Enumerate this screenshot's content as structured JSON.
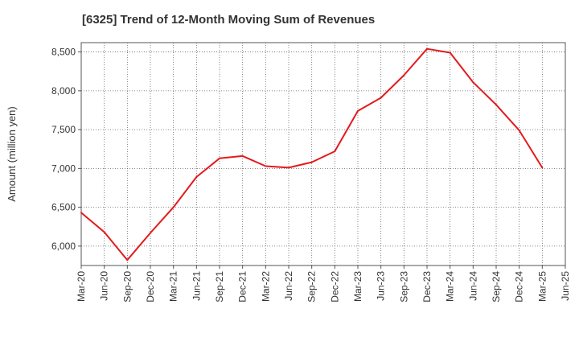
{
  "chart_data": {
    "type": "line",
    "title": "[6325]  Trend of 12-Month Moving Sum of Revenues",
    "xlabel": "",
    "ylabel": "Amount (million yen)",
    "ylim": [
      5750,
      8620
    ],
    "yticks": [
      6000,
      6500,
      7000,
      7500,
      8000,
      8500
    ],
    "ytick_labels": [
      "6,000",
      "6,500",
      "7,000",
      "7,500",
      "8,000",
      "8,500"
    ],
    "categories": [
      "Mar-20",
      "Jun-20",
      "Sep-20",
      "Dec-20",
      "Mar-21",
      "Jun-21",
      "Sep-21",
      "Dec-21",
      "Mar-22",
      "Jun-22",
      "Sep-22",
      "Dec-22",
      "Mar-23",
      "Jun-23",
      "Sep-23",
      "Dec-23",
      "Mar-24",
      "Jun-24",
      "Sep-24",
      "Dec-24",
      "Mar-25",
      "Jun-25"
    ],
    "grid": true,
    "series": [
      {
        "color": "#e31a1c",
        "values": [
          6430,
          6180,
          5820,
          6170,
          6500,
          6890,
          7130,
          7160,
          7030,
          7010,
          7080,
          7220,
          7740,
          7910,
          8200,
          8540,
          8490,
          8110,
          7820,
          7490,
          7010,
          null
        ]
      }
    ]
  }
}
